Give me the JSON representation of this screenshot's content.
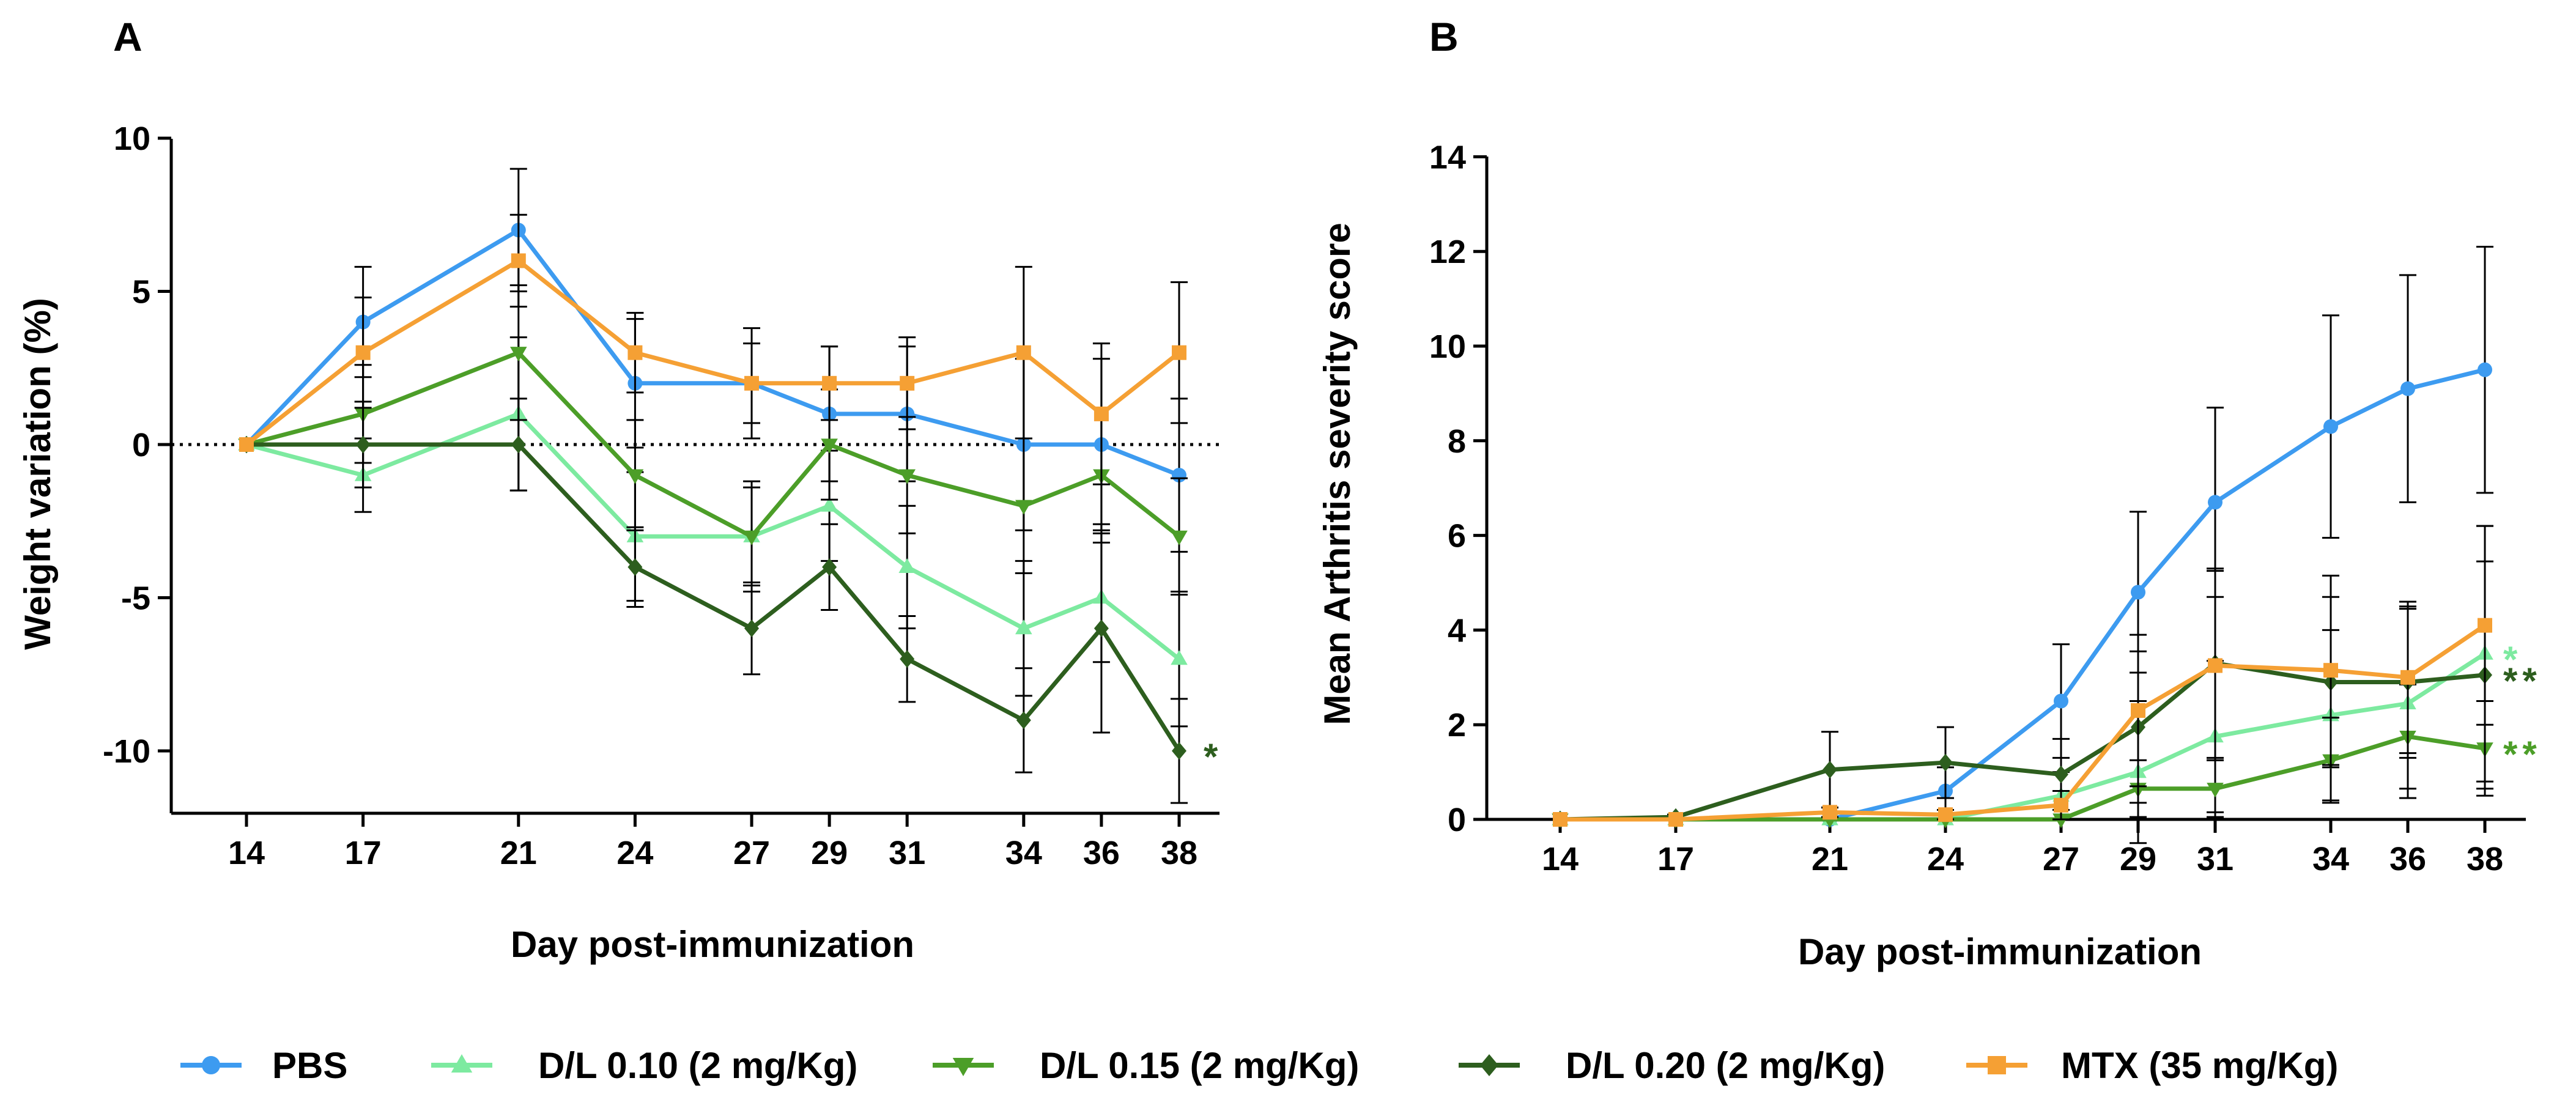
{
  "colors": {
    "PBS": "#3D9BF0",
    "DL010": "#7DEAA0",
    "DL015": "#4C9E28",
    "DL020": "#2D5E1E",
    "MTX": "#F5A034"
  },
  "legend": [
    {
      "key": "PBS",
      "label": "PBS",
      "marker": "circle"
    },
    {
      "key": "DL010",
      "label": "D/L 0.10 (2 mg/Kg)",
      "marker": "triangle-up"
    },
    {
      "key": "DL015",
      "label": "D/L 0.15 (2 mg/Kg)",
      "marker": "triangle-down"
    },
    {
      "key": "DL020",
      "label": "D/L 0.20 (2 mg/Kg)",
      "marker": "diamond"
    },
    {
      "key": "MTX",
      "label": "MTX (35 mg/Kg)",
      "marker": "square"
    }
  ],
  "chart_data": [
    {
      "panel": "A",
      "type": "line",
      "xlabel": "Day post-immunization",
      "ylabel": "Weight variation (%)",
      "x": [
        14,
        17,
        21,
        24,
        27,
        29,
        31,
        34,
        36,
        38
      ],
      "ylim": [
        -12,
        10
      ],
      "yticks": [
        10,
        5,
        0,
        -5,
        -10
      ],
      "zero_line": "dotted",
      "series": [
        {
          "key": "PBS",
          "name": "PBS",
          "values": [
            0,
            4,
            7,
            2,
            2,
            1,
            1,
            0,
            0,
            -1
          ],
          "errors": [
            0,
            1.8,
            2,
            2.1,
            1.8,
            2.2,
            2.2,
            2.8,
            2.8,
            2.5
          ]
        },
        {
          "key": "DL010",
          "name": "D/L 0.10 (2 mg/Kg)",
          "values": [
            0,
            -1,
            1,
            -3,
            -3,
            -2,
            -4,
            -6,
            -5,
            -7
          ],
          "errors": [
            0,
            1.2,
            2.5,
            2.1,
            1.6,
            1.8,
            2,
            2.2,
            2.1,
            2.2
          ]
        },
        {
          "key": "DL015",
          "name": "D/L 0.15 (2 mg/Kg)",
          "values": [
            0,
            1,
            3,
            -1,
            -3,
            0,
            -1,
            -2,
            -1,
            -3
          ],
          "errors": [
            0,
            1.6,
            2.2,
            1.8,
            1.8,
            1.8,
            1.9,
            2.2,
            2.2,
            1.9
          ]
        },
        {
          "key": "DL020",
          "name": "D/L 0.20 (2 mg/Kg)",
          "values": [
            0,
            0,
            0,
            -4,
            -6,
            -4,
            -7,
            -9,
            -6,
            -10
          ],
          "errors": [
            0,
            1.4,
            1.5,
            1.3,
            1.5,
            1.4,
            1.4,
            1.7,
            3.4,
            1.7
          ]
        },
        {
          "key": "MTX",
          "name": "MTX (35 mg/Kg)",
          "values": [
            0,
            3,
            6,
            3,
            2,
            2,
            2,
            3,
            1,
            3
          ],
          "errors": [
            0,
            1.8,
            1.5,
            1.3,
            1.3,
            1.2,
            1.5,
            2.8,
            2.3,
            2.3
          ]
        }
      ],
      "annotations": [
        {
          "text": "*",
          "key": "DL020",
          "near_x": 38,
          "near_y": -10
        }
      ]
    },
    {
      "panel": "B",
      "type": "line",
      "xlabel": "Day post-immunization",
      "ylabel": "Mean  Arthritis severity score",
      "x": [
        14,
        17,
        21,
        24,
        27,
        29,
        31,
        34,
        36,
        38
      ],
      "ylim": [
        0,
        14
      ],
      "yticks": [
        0,
        2,
        4,
        6,
        8,
        10,
        12,
        14
      ],
      "series": [
        {
          "key": "PBS",
          "name": "PBS",
          "values": [
            0,
            0,
            0,
            0.6,
            2.5,
            4.8,
            6.7,
            8.3,
            9.1,
            9.5
          ],
          "errors": [
            0,
            0,
            0,
            0.5,
            1.2,
            1.7,
            2,
            2.35,
            2.4,
            2.6
          ]
        },
        {
          "key": "DL010",
          "name": "D/L 0.10 (2 mg/Kg)",
          "values": [
            0,
            0,
            0,
            0,
            0.5,
            1,
            1.75,
            2.2,
            2.45,
            3.5
          ],
          "errors": [
            0,
            0,
            0,
            0,
            0.5,
            1.5,
            1.6,
            1.8,
            2,
            2.7
          ]
        },
        {
          "key": "DL015",
          "name": "D/L 0.15 (2 mg/Kg)",
          "values": [
            0,
            0,
            0,
            0,
            0,
            0.65,
            0.65,
            1.25,
            1.75,
            1.5
          ],
          "errors": [
            0,
            0,
            0,
            0,
            0,
            0.6,
            0.6,
            0.9,
            1.1,
            1
          ]
        },
        {
          "key": "DL020",
          "name": "D/L 0.20 (2 mg/Kg)",
          "values": [
            0,
            0.05,
            1.05,
            1.2,
            0.95,
            1.95,
            3.3,
            2.9,
            2.9,
            3.05
          ],
          "errors": [
            0,
            0.05,
            0.8,
            0.75,
            0.75,
            1.6,
            2,
            1.8,
            1.6,
            2.4
          ]
        },
        {
          "key": "MTX",
          "name": "MTX (35 mg/Kg)",
          "values": [
            0,
            0,
            0.15,
            0.1,
            0.3,
            2.3,
            3.25,
            3.15,
            3,
            4.1
          ],
          "errors": [
            0,
            0,
            0.1,
            0.1,
            0.3,
            1.6,
            2,
            2,
            1.6,
            2.1
          ]
        }
      ],
      "annotations": [
        {
          "text": "*",
          "key": "DL010",
          "near_x": 38,
          "near_y": 3.5
        },
        {
          "text": "**",
          "key": "DL020",
          "near_x": 38,
          "near_y": 3.05
        },
        {
          "text": "**",
          "key": "DL015",
          "near_x": 38,
          "near_y": 1.5
        }
      ]
    }
  ]
}
